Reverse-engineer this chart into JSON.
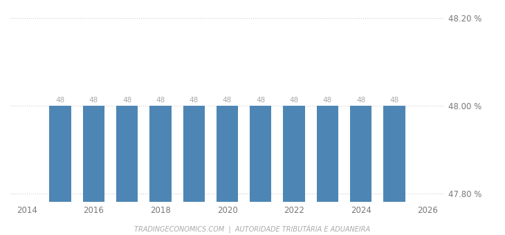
{
  "years": [
    2015,
    2016,
    2017,
    2018,
    2019,
    2020,
    2021,
    2022,
    2023,
    2024,
    2025
  ],
  "values": [
    48,
    48,
    48,
    48,
    48,
    48,
    48,
    48,
    48,
    48,
    48
  ],
  "bar_color": "#4d86b4",
  "bar_width": 0.65,
  "xlim": [
    2013.5,
    2026.5
  ],
  "ylim": [
    47.78,
    48.22
  ],
  "ymin": 47.78,
  "yticks": [
    47.8,
    48.0,
    48.2
  ],
  "ytick_labels": [
    "47.80 %",
    "48.00 %",
    "48.20 %"
  ],
  "xticks": [
    2014,
    2016,
    2018,
    2020,
    2022,
    2024,
    2026
  ],
  "grid_color": "#cccccc",
  "background_color": "#ffffff",
  "label_color": "#aaaaaa",
  "label_fontsize": 7.5,
  "tick_fontsize": 8.5,
  "footer_text": "TRADINGECONOMICS.COM  |  AUTORIDADE TRIBUTÁRIA E ADUANEIRA",
  "footer_color": "#aaaaaa"
}
